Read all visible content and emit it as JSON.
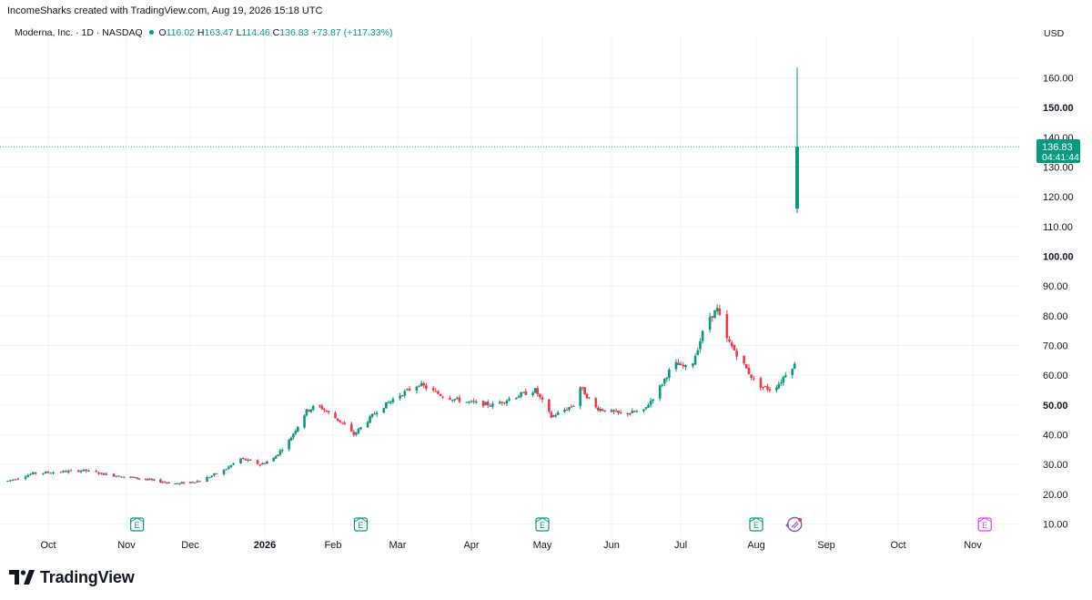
{
  "header": {
    "credit": "IncomeSharks created with TradingView.com, Aug 19, 2026 15:18 UTC",
    "symbol": "Moderna, Inc. · 1D · NASDAQ",
    "o_label": "O",
    "o_value": "116.02",
    "h_label": "H",
    "h_value": "163.47",
    "l_label": "L",
    "l_value": "114.46",
    "c_label": "C",
    "c_value": "136.83",
    "change": "+73.87 (+117.33%)",
    "currency": "USD"
  },
  "price_tag": {
    "price": "136.83",
    "countdown": "04:41:44"
  },
  "footer": {
    "brand": "TradingView"
  },
  "colors": {
    "up": "#089981",
    "down": "#f23645",
    "accent": "#089981",
    "earnings": "#089981",
    "upcoming_earnings": "#e040fb",
    "dividend": "#7e57c2"
  },
  "chart_data": {
    "type": "candlestick",
    "title": "Moderna, Inc. · 1D · NASDAQ",
    "y_axis": {
      "ticks": [
        10,
        20,
        30,
        40,
        50,
        60,
        70,
        80,
        90,
        100,
        110,
        120,
        130,
        140,
        150,
        160
      ],
      "tick_labels": [
        "10.00",
        "20.00",
        "30.00",
        "40.00",
        "50.00",
        "60.00",
        "70.00",
        "80.00",
        "90.00",
        "100.00",
        "110.00",
        "120.00",
        "130.00",
        "140.00",
        "150.00",
        "160.00"
      ],
      "bold": [
        50,
        100,
        150
      ],
      "unit": "USD"
    },
    "x_axis": {
      "labels": [
        "Oct",
        "Nov",
        "Dec",
        "2026",
        "Feb",
        "Mar",
        "Apr",
        "May",
        "Jun",
        "Jul",
        "Aug",
        "Sep",
        "Oct",
        "Nov"
      ],
      "bold": [
        "2026"
      ]
    },
    "last_bar": {
      "date": "Aug 19, 2026",
      "open": 116.02,
      "high": 163.47,
      "low": 114.46,
      "close": 136.83
    },
    "price_path": [
      [
        "2025-09-15",
        24.5
      ],
      [
        "2025-09-25",
        27.0
      ],
      [
        "2025-10-05",
        27.5
      ],
      [
        "2025-10-15",
        28.0
      ],
      [
        "2025-10-25",
        26.5
      ],
      [
        "2025-11-05",
        25.5
      ],
      [
        "2025-11-15",
        24.5
      ],
      [
        "2025-11-25",
        23.5
      ],
      [
        "2025-12-05",
        24.5
      ],
      [
        "2025-12-15",
        28.0
      ],
      [
        "2025-12-22",
        32.0
      ],
      [
        "2025-12-30",
        30.0
      ],
      [
        "2026-01-05",
        32.0
      ],
      [
        "2026-01-12",
        38.0
      ],
      [
        "2026-01-20",
        48.0
      ],
      [
        "2026-01-25",
        50.0
      ],
      [
        "2026-02-05",
        44.0
      ],
      [
        "2026-02-10",
        40.0
      ],
      [
        "2026-02-20",
        48.0
      ],
      [
        "2026-03-01",
        53.0
      ],
      [
        "2026-03-10",
        57.0
      ],
      [
        "2026-03-20",
        53.0
      ],
      [
        "2026-03-30",
        51.0
      ],
      [
        "2026-04-10",
        50.0
      ],
      [
        "2026-04-20",
        53.0
      ],
      [
        "2026-04-28",
        55.0
      ],
      [
        "2026-05-05",
        46.0
      ],
      [
        "2026-05-15",
        50.0
      ],
      [
        "2026-05-18",
        56.0
      ],
      [
        "2026-05-25",
        49.0
      ],
      [
        "2026-06-05",
        47.0
      ],
      [
        "2026-06-15",
        48.0
      ],
      [
        "2026-06-22",
        56.0
      ],
      [
        "2026-06-28",
        64.0
      ],
      [
        "2026-07-05",
        62.0
      ],
      [
        "2026-07-12",
        79.0
      ],
      [
        "2026-07-16",
        82.0
      ],
      [
        "2026-07-20",
        72.0
      ],
      [
        "2026-07-25",
        66.0
      ],
      [
        "2026-08-01",
        57.0
      ],
      [
        "2026-08-08",
        55.0
      ],
      [
        "2026-08-12",
        58.0
      ],
      [
        "2026-08-15",
        62.0
      ],
      [
        "2026-08-18",
        63.5
      ]
    ],
    "event_markers": [
      {
        "type": "earnings",
        "label": "E",
        "date": "2025-11-06"
      },
      {
        "type": "earnings",
        "label": "E",
        "date": "2026-02-13"
      },
      {
        "type": "earnings",
        "label": "E",
        "date": "2026-05-01"
      },
      {
        "type": "earnings",
        "label": "E",
        "date": "2026-08-01"
      },
      {
        "type": "dividend",
        "label": "",
        "date": "2026-08-18"
      },
      {
        "type": "upcoming_earnings",
        "label": "E",
        "date": "2026-11-06"
      }
    ]
  }
}
